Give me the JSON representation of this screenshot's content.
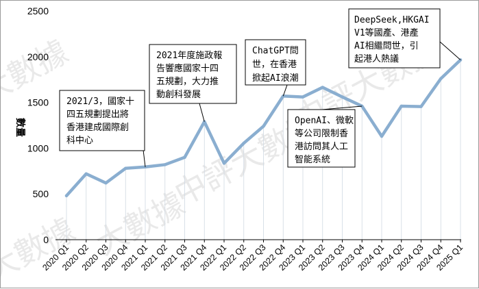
{
  "chart_data": {
    "type": "line",
    "ylabel": "數量",
    "ylim": [
      0,
      2500
    ],
    "yticks": [
      0,
      500,
      1000,
      1500,
      2000,
      2500
    ],
    "grid": "vertical drop lines",
    "categories": [
      "2020 Q1",
      "2020 Q2",
      "2020 Q3",
      "2020 Q4",
      "2021 Q1",
      "2021 Q2",
      "2021 Q3",
      "2021 Q4",
      "2022 Q1",
      "2022 Q2",
      "2022 Q3",
      "2022 Q4",
      "2023 Q1",
      "2023 Q2",
      "2023 Q3",
      "2023 Q4",
      "2024 Q1",
      "2024 Q2",
      "2024 Q3",
      "2024 Q4",
      "2025 Q1"
    ],
    "series": [
      {
        "values": [
          480,
          720,
          620,
          780,
          795,
          820,
          900,
          1290,
          835,
          1055,
          1240,
          1570,
          1560,
          1665,
          1560,
          1460,
          1130,
          1460,
          1455,
          1760,
          1965
        ]
      }
    ],
    "line_color": "#8aaed0",
    "annotations": [
      {
        "text_lines": [
          "2021/3，國家十",
          "四五規劃提出將",
          "香港建成國際創",
          "科中心"
        ],
        "target_index": 4
      },
      {
        "text_lines": [
          "2021年度施政報",
          "告響應國家十四",
          "五規劃，大力推",
          "動創科發展"
        ],
        "target_index": 7
      },
      {
        "text_lines": [
          "ChatGPT問",
          "世，在香港",
          "掀起AI浪潮"
        ],
        "target_index": 11
      },
      {
        "text_lines": [
          "OpenAI、微軟",
          "等公司限制香",
          "港訪問其人工",
          "智能系統"
        ],
        "target_index": 15
      },
      {
        "text_lines": [
          "DeepSeek,HKGAI",
          "V1等國產、港產",
          "AI相繼問世，引",
          "起港人熱議"
        ],
        "target_index": 20
      }
    ],
    "watermark": [
      "大數據",
      "中評大數據",
      "大數據",
      "中評大數據",
      "大數據"
    ]
  }
}
